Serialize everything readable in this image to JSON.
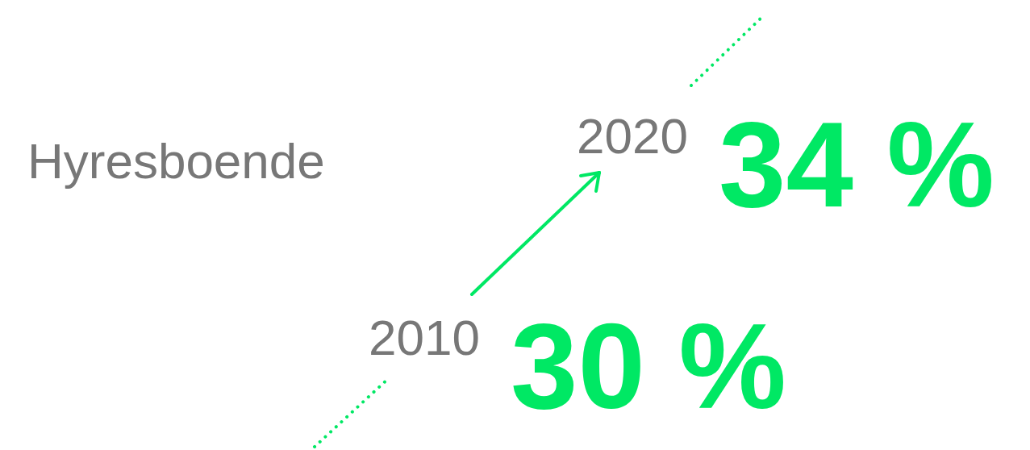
{
  "chart_data": {
    "type": "other",
    "title": "Hyresboende",
    "categories": [
      "2010",
      "2020"
    ],
    "values": [
      30,
      34
    ],
    "value_labels": [
      "30 %",
      "34 %"
    ],
    "color": "#00e864"
  }
}
